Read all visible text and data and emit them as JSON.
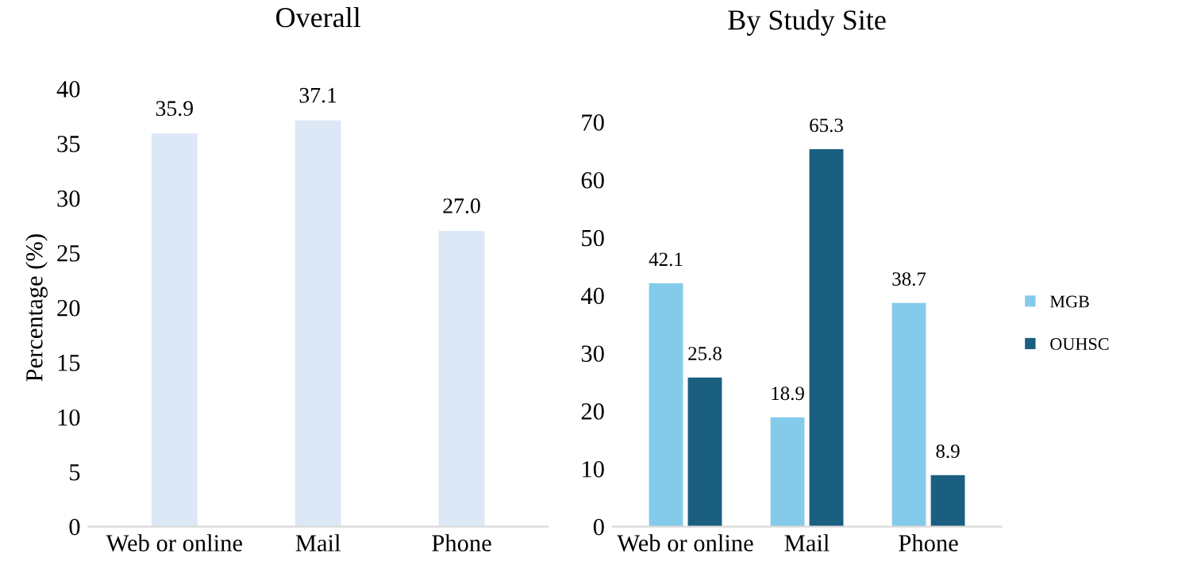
{
  "chart_data": [
    {
      "type": "bar",
      "title": "Overall",
      "ylabel": "Percentage (%)",
      "categories": [
        "Web or online",
        "Mail",
        "Phone"
      ],
      "series": [
        {
          "color": "#dce8f6",
          "values": [
            35.9,
            37.1,
            27.0
          ],
          "value_labels": [
            "35.9",
            "37.1",
            "27.0"
          ]
        }
      ],
      "ylim": [
        0,
        40
      ],
      "yticks": [
        0,
        5,
        10,
        15,
        20,
        25,
        30,
        35,
        40
      ],
      "grid": false,
      "legend": false
    },
    {
      "type": "bar",
      "title": "By Study Site",
      "categories": [
        "Web or online",
        "Mail",
        "Phone"
      ],
      "series": [
        {
          "name": "MGB",
          "color": "#84cbeb",
          "values": [
            42.1,
            18.9,
            38.7
          ]
        },
        {
          "name": "OUHSC",
          "color": "#1b5f80",
          "values": [
            25.8,
            65.3,
            8.9
          ]
        }
      ],
      "ylim": [
        0,
        70
      ],
      "yticks": [
        0,
        10,
        20,
        30,
        40,
        50,
        60,
        70
      ],
      "data_labels": true,
      "grid": false,
      "legend": "right"
    }
  ]
}
